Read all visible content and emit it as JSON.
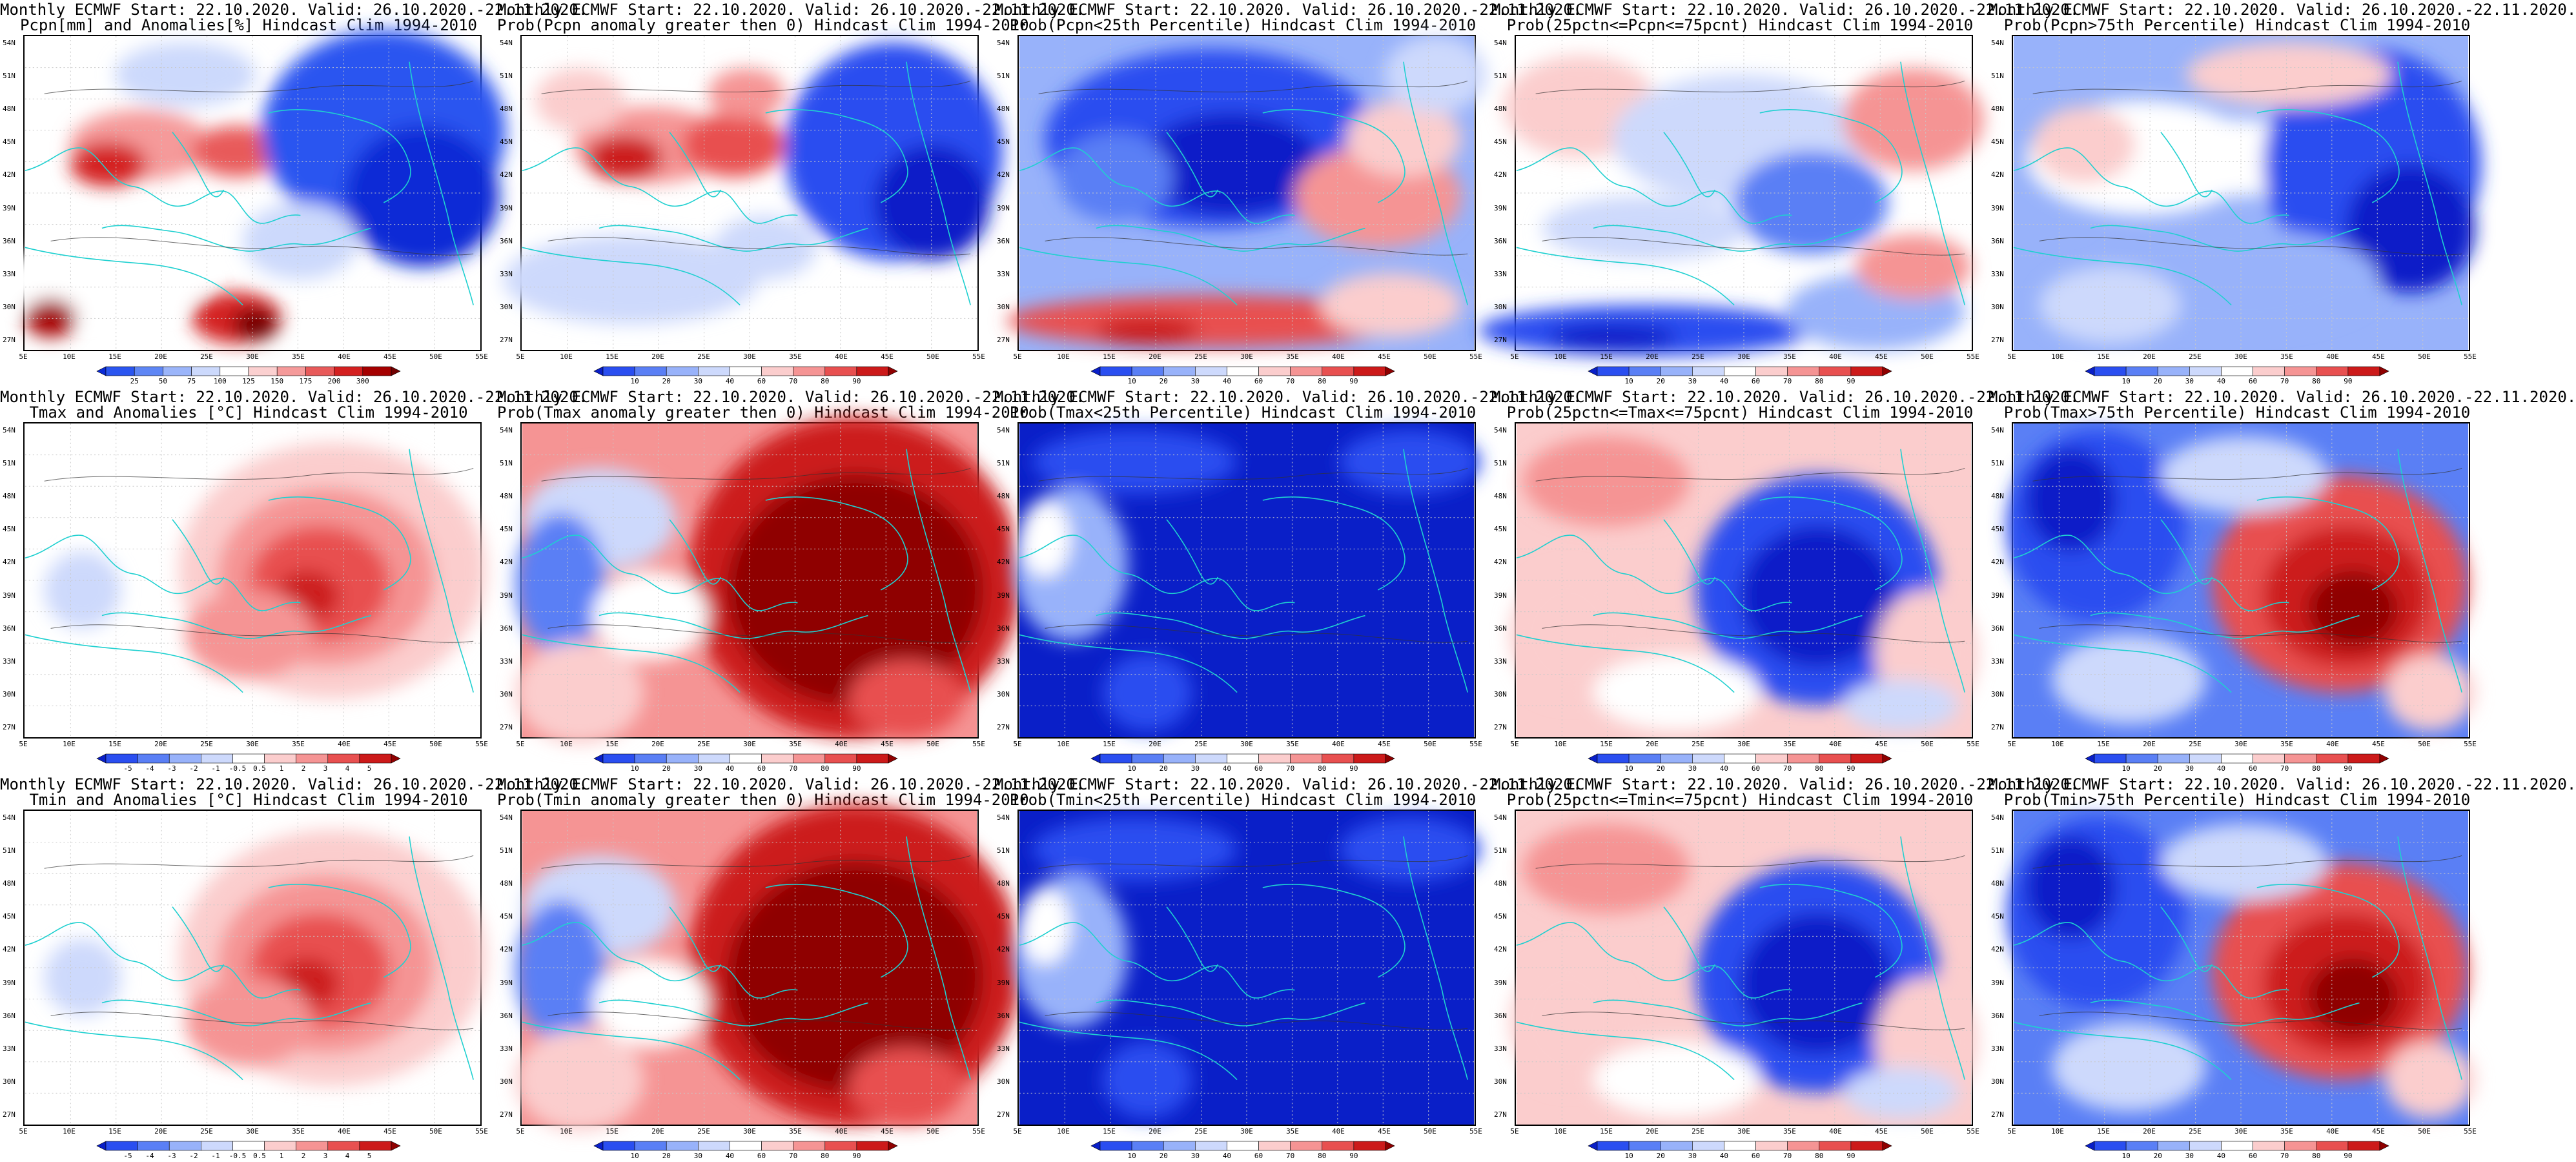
{
  "lat_labels": [
    "54N",
    "51N",
    "48N",
    "45N",
    "42N",
    "39N",
    "36N",
    "33N",
    "30N",
    "27N"
  ],
  "lon_labels": [
    "5E",
    "10E",
    "15E",
    "20E",
    "25E",
    "30E",
    "35E",
    "40E",
    "45E",
    "50E",
    "55E"
  ],
  "colorbars": {
    "pcpn": {
      "labels": [
        "25",
        "50",
        "75",
        "100",
        "125",
        "150",
        "175",
        "200",
        "300"
      ],
      "colors": [
        "#0a2ad6",
        "#2a55f0",
        "#5e86f5",
        "#9bb5fa",
        "#ccd9fc",
        "#ffffff",
        "#fbd0d0",
        "#f59a9a",
        "#e85a5a",
        "#d42020",
        "#a50000",
        "#700000"
      ]
    },
    "prob": {
      "labels": [
        "10",
        "20",
        "30",
        "40",
        "60",
        "70",
        "80",
        "90"
      ],
      "colors": [
        "#0a1fc8",
        "#2a4ef0",
        "#5a7ff5",
        "#98b2fa",
        "#cdd9fc",
        "#ffffff",
        "#fbcdcd",
        "#f59494",
        "#e85050",
        "#cc1a1a",
        "#8f0000"
      ]
    },
    "anom": {
      "labels": [
        "-5",
        "-4",
        "-3",
        "-2",
        "-1",
        "-0.5",
        "0.5",
        "1",
        "2",
        "3",
        "4",
        "5"
      ],
      "colors": [
        "#0a1fc8",
        "#2a4ef0",
        "#5a7ff5",
        "#98b2fa",
        "#cdd9fc",
        "#ffffff",
        "#fbcdcd",
        "#f59494",
        "#e85050",
        "#cc1a1a",
        "#8f0000"
      ]
    }
  },
  "panels": [
    {
      "row": 0,
      "col": 0,
      "line1": "Monthly ECMWF Start: 22.10.2020. Valid: 26.10.2020.-22.11.2020.",
      "line2": "Pcpn[mm] and Anomalies[%] Hindcast Clim 1994-2010",
      "scheme": "pcpn",
      "pattern": "pcpn_anom"
    },
    {
      "row": 0,
      "col": 1,
      "line1": "Monthly ECMWF Start: 22.10.2020. Valid: 26.10.2020.-22.11.2020.",
      "line2": "Prob(Pcpn anomaly greater then 0) Hindcast Clim 1994-2010",
      "scheme": "prob",
      "pattern": "pcpn_gt0"
    },
    {
      "row": 0,
      "col": 2,
      "line1": "Monthly ECMWF Start: 22.10.2020. Valid: 26.10.2020.-22.11.2020.",
      "line2": "Prob(Pcpn<25th Percentile) Hindcast Clim 1994-2010",
      "scheme": "prob",
      "pattern": "pcpn_lt25"
    },
    {
      "row": 0,
      "col": 3,
      "line1": "Monthly ECMWF Start: 22.10.2020. Valid: 26.10.2020.-22.11.2020.",
      "line2": "Prob(25pctn<=Pcpn<=75pcnt) Hindcast Clim 1994-2010",
      "scheme": "prob",
      "pattern": "pcpn_mid"
    },
    {
      "row": 0,
      "col": 4,
      "line1": "Monthly ECMWF Start: 22.10.2020. Valid: 26.10.2020.-22.11.2020.",
      "line2": "Prob(Pcpn>75th Percentile) Hindcast Clim 1994-2010",
      "scheme": "prob",
      "pattern": "pcpn_gt75"
    },
    {
      "row": 1,
      "col": 0,
      "line1": "Monthly ECMWF Start: 22.10.2020. Valid: 26.10.2020.-22.11.2020.",
      "line2": "Tmax and Anomalies [°C] Hindcast Clim 1994-2010",
      "scheme": "anom",
      "pattern": "t_anom"
    },
    {
      "row": 1,
      "col": 1,
      "line1": "Monthly ECMWF Start: 22.10.2020. Valid: 26.10.2020.-22.11.2020.",
      "line2": "Prob(Tmax anomaly greater then 0) Hindcast Clim 1994-2010",
      "scheme": "prob",
      "pattern": "t_gt0"
    },
    {
      "row": 1,
      "col": 2,
      "line1": "Monthly ECMWF Start: 22.10.2020. Valid: 26.10.2020.-22.11.2020.",
      "line2": "Prob(Tmax<25th Percentile) Hindcast Clim 1994-2010",
      "scheme": "prob",
      "pattern": "t_lt25"
    },
    {
      "row": 1,
      "col": 3,
      "line1": "Monthly ECMWF Start: 22.10.2020. Valid: 26.10.2020.-22.11.2020.",
      "line2": "Prob(25pctn<=Tmax<=75pcnt) Hindcast Clim 1994-2010",
      "scheme": "prob",
      "pattern": "t_mid"
    },
    {
      "row": 1,
      "col": 4,
      "line1": "Monthly ECMWF Start: 22.10.2020. Valid: 26.10.2020.-22.11.2020.",
      "line2": "Prob(Tmax>75th Percentile) Hindcast Clim 1994-2010",
      "scheme": "prob",
      "pattern": "t_gt75"
    },
    {
      "row": 2,
      "col": 0,
      "line1": "Monthly ECMWF Start: 22.10.2020. Valid: 26.10.2020.-22.11.2020.",
      "line2": "Tmin and Anomalies [°C] Hindcast Clim 1994-2010",
      "scheme": "anom",
      "pattern": "t_anom"
    },
    {
      "row": 2,
      "col": 1,
      "line1": "Monthly ECMWF Start: 22.10.2020. Valid: 26.10.2020.-22.11.2020.",
      "line2": "Prob(Tmin anomaly greater then 0) Hindcast Clim 1994-2010",
      "scheme": "prob",
      "pattern": "t_gt0"
    },
    {
      "row": 2,
      "col": 2,
      "line1": "Monthly ECMWF Start: 22.10.2020. Valid: 26.10.2020.-22.11.2020.",
      "line2": "Prob(Tmin<25th Percentile) Hindcast Clim 1994-2010",
      "scheme": "prob",
      "pattern": "t_lt25"
    },
    {
      "row": 2,
      "col": 3,
      "line1": "Monthly ECMWF Start: 22.10.2020. Valid: 26.10.2020.-22.11.2020.",
      "line2": "Prob(25pctn<=Tmin<=75pcnt) Hindcast Clim 1994-2010",
      "scheme": "prob",
      "pattern": "t_mid"
    },
    {
      "row": 2,
      "col": 4,
      "line1": "Monthly ECMWF Start: 22.10.2020. Valid: 26.10.2020.-22.11.2020.",
      "line2": "Prob(Tmin>75th Percentile) Hindcast Clim 1994-2010",
      "scheme": "prob",
      "pattern": "t_gt75"
    }
  ]
}
